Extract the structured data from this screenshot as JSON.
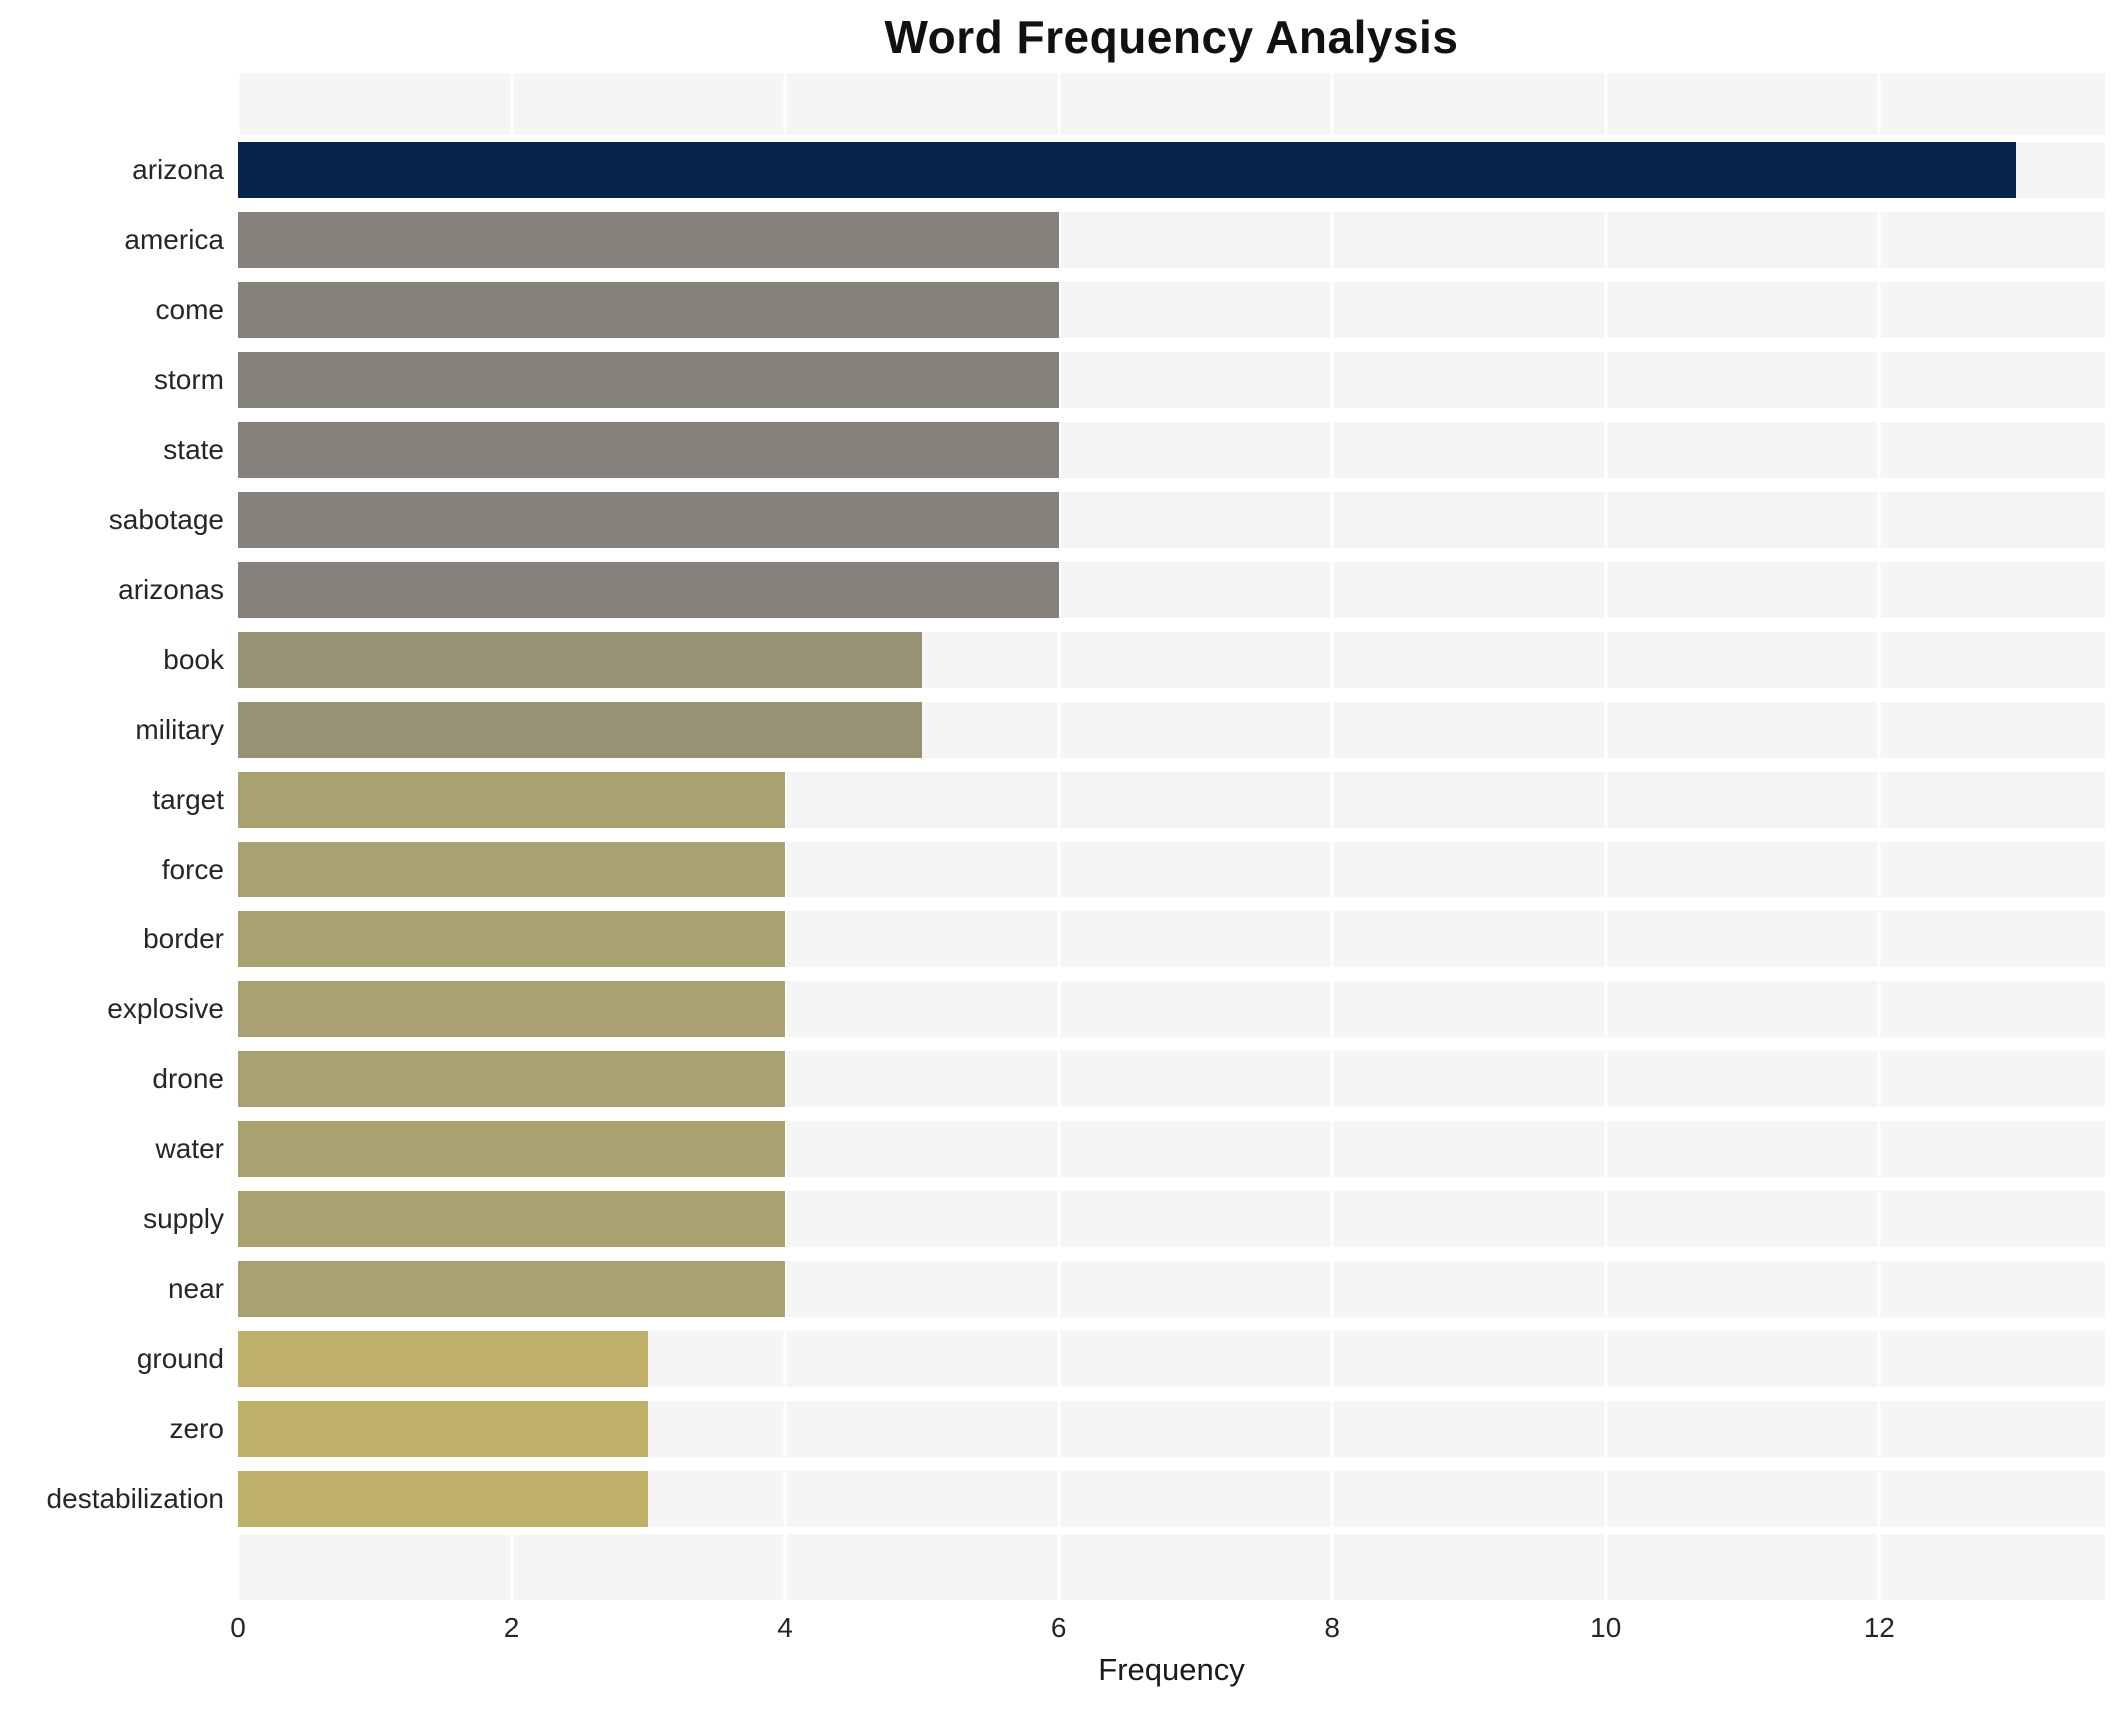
{
  "title": "Word Frequency Analysis",
  "x_axis": {
    "label": "Frequency",
    "ticks": [
      0,
      2,
      4,
      6,
      8,
      10,
      12
    ]
  },
  "style": {
    "panel_background": "#f5f5f5",
    "gridline_color": "#ffffff",
    "figure_background": "#ffffff",
    "text_color": "#262626",
    "bar_color_navy": "#05234c",
    "bar_color_gray": "#84827a",
    "bar_color_olive": "#989274",
    "bar_color_khaki": "#aba271",
    "bar_color_gold": "#bfb069"
  },
  "chart_data": {
    "type": "bar",
    "orientation": "horizontal",
    "title": "Word Frequency Analysis",
    "xlabel": "Frequency",
    "ylabel": "",
    "xlim": [
      0,
      13.65
    ],
    "x_ticks": [
      0,
      2,
      4,
      6,
      8,
      10,
      12
    ],
    "grid": "white vertical gridlines at ticks, white stripes between bars, on light gray panel",
    "legend": "none",
    "categories": [
      "arizona",
      "america",
      "come",
      "storm",
      "state",
      "sabotage",
      "arizonas",
      "book",
      "military",
      "target",
      "force",
      "border",
      "explosive",
      "drone",
      "water",
      "supply",
      "near",
      "ground",
      "zero",
      "destabilization"
    ],
    "values": [
      13,
      6,
      6,
      6,
      6,
      6,
      6,
      5,
      5,
      4,
      4,
      4,
      4,
      4,
      4,
      4,
      4,
      3,
      3,
      3
    ],
    "bar_colors": [
      "#05234c",
      "#84827a",
      "#84827a",
      "#84827a",
      "#84827a",
      "#84827a",
      "#84827a",
      "#989274",
      "#989274",
      "#aba271",
      "#aba271",
      "#aba271",
      "#aba271",
      "#aba271",
      "#aba271",
      "#aba271",
      "#aba271",
      "#bfb069",
      "#bfb069",
      "#bfb069"
    ]
  }
}
